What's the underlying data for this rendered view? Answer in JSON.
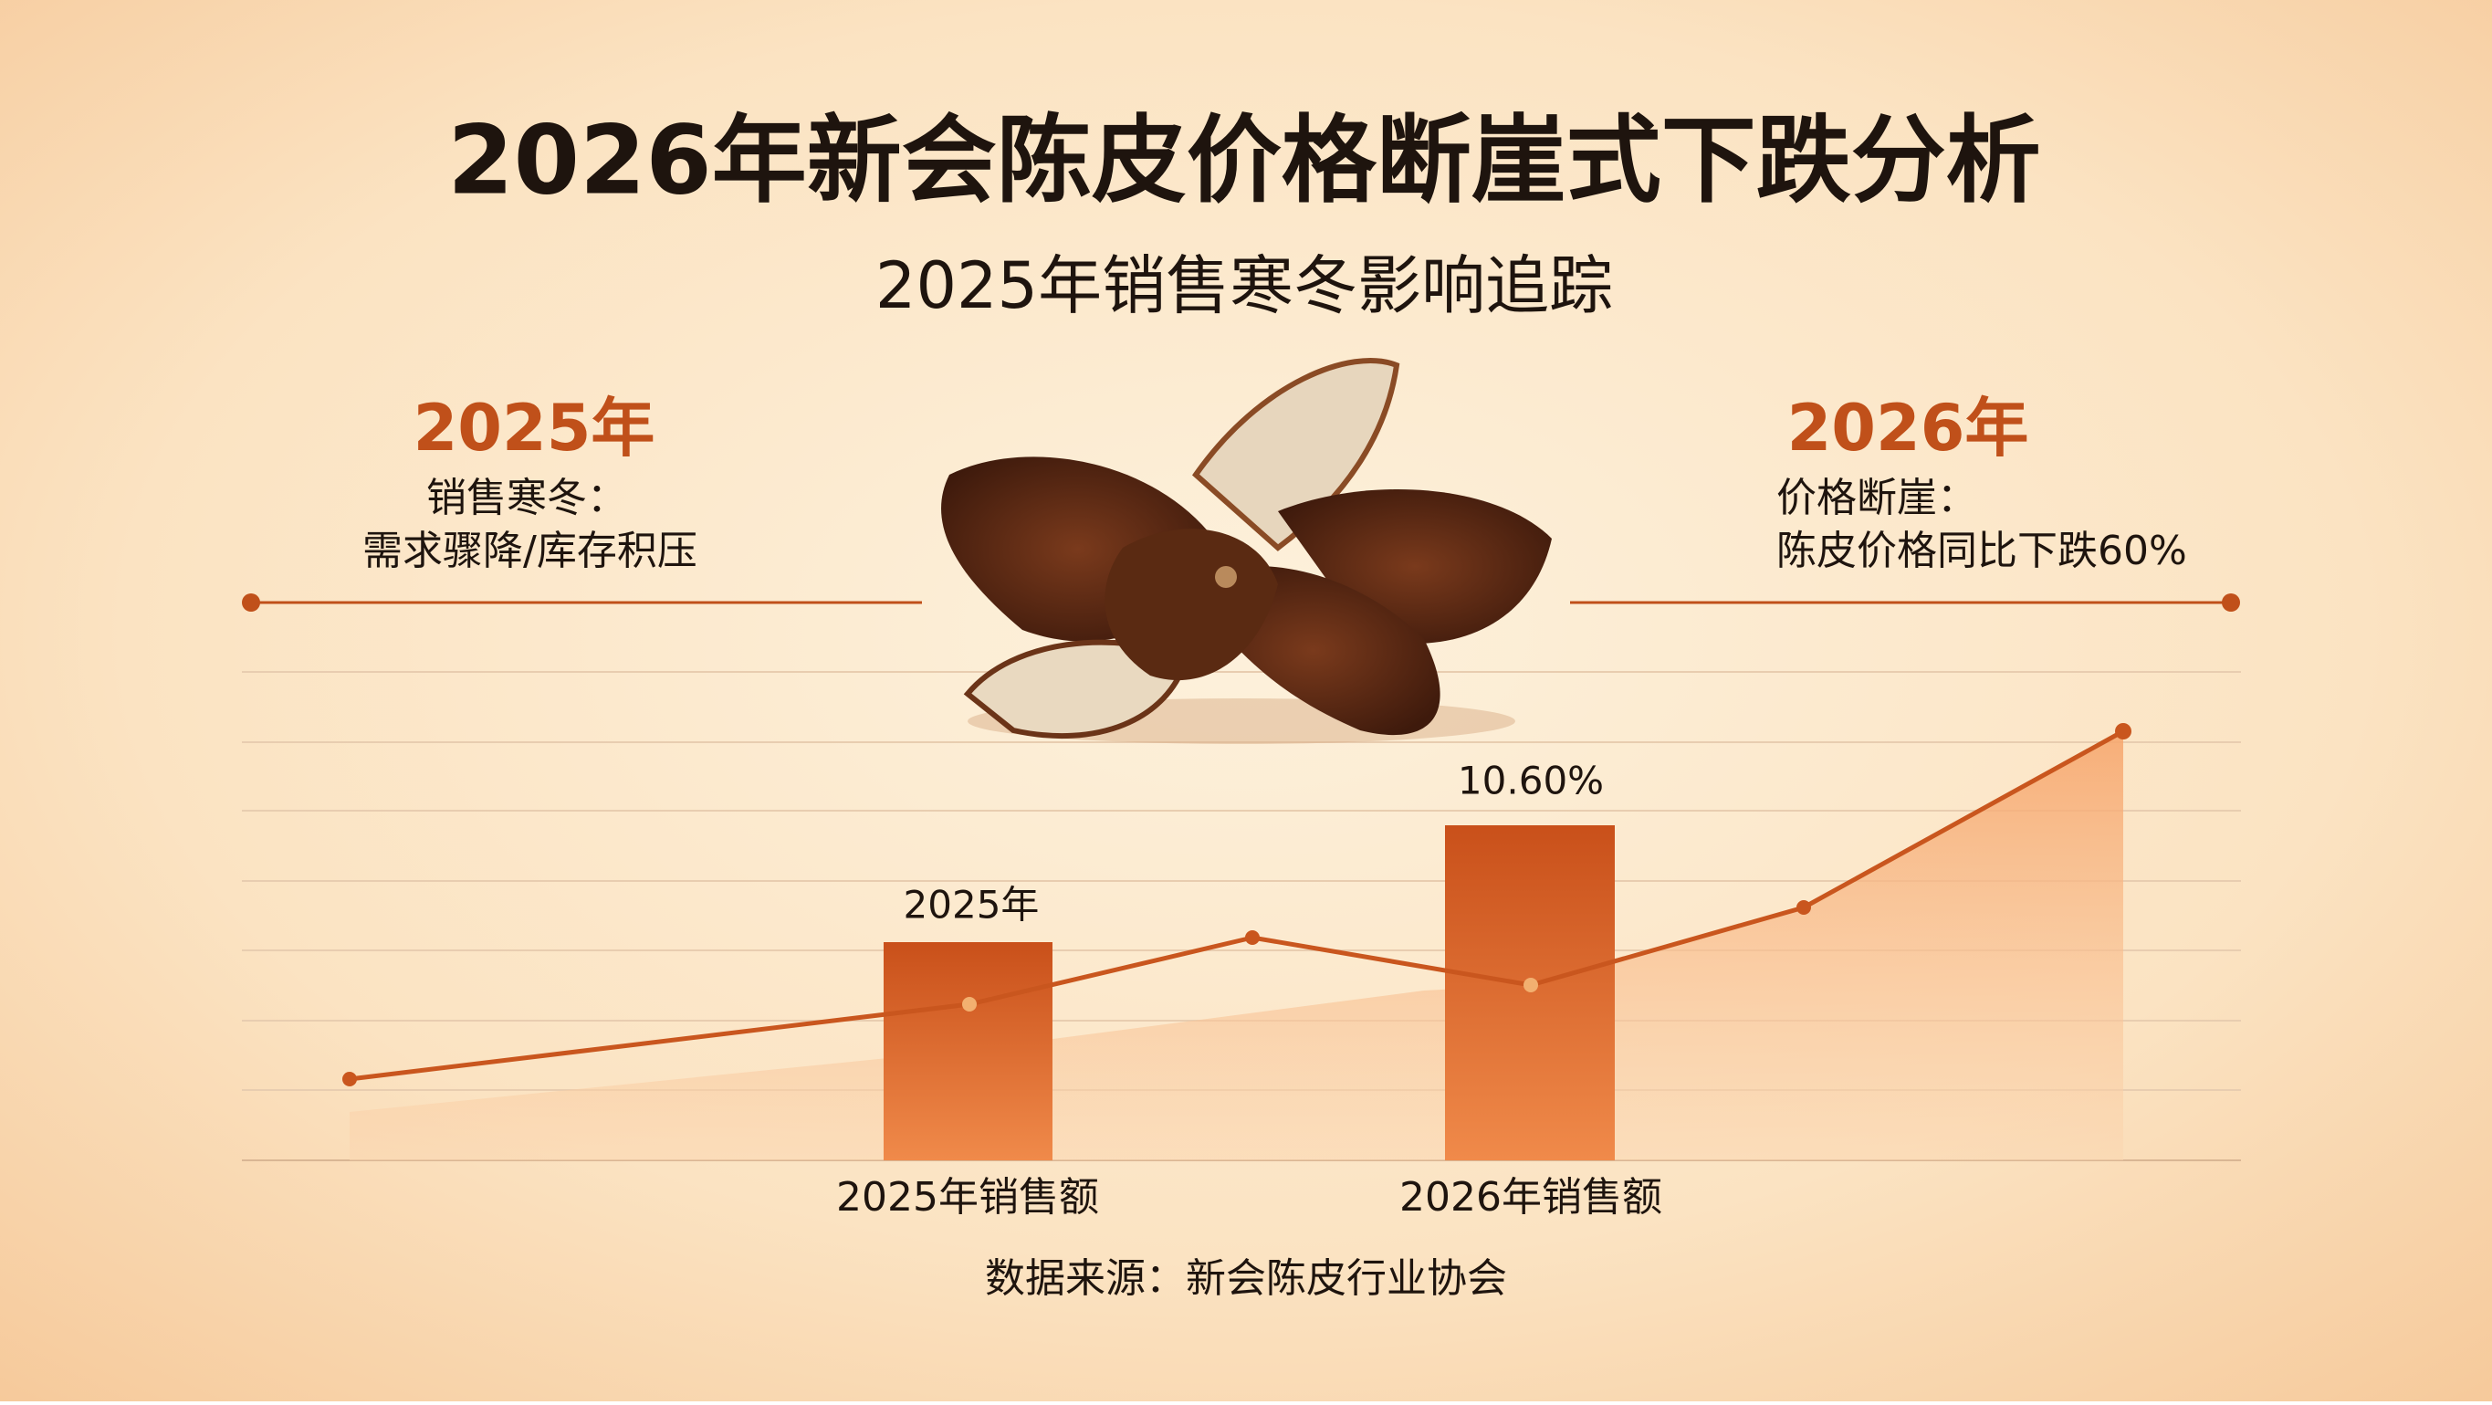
{
  "header": {
    "title": "2026年新会陈皮价格断崖式下跌分析",
    "subtitle": "2025年销售寒冬影响追踪"
  },
  "left_note": {
    "year": "2025年",
    "line1": "销售寒冬：",
    "line2": "需求骤降/库存积压"
  },
  "right_note": {
    "year": "2026年",
    "line1": "价格断崖：",
    "line2": "陈皮价格同比下跌60%"
  },
  "bars": [
    {
      "label": "2025年",
      "category": "2025年销售额"
    },
    {
      "label": "10.60%",
      "category": "2026年销售额"
    }
  ],
  "source": "数据来源：新会陈皮行业协会"
}
